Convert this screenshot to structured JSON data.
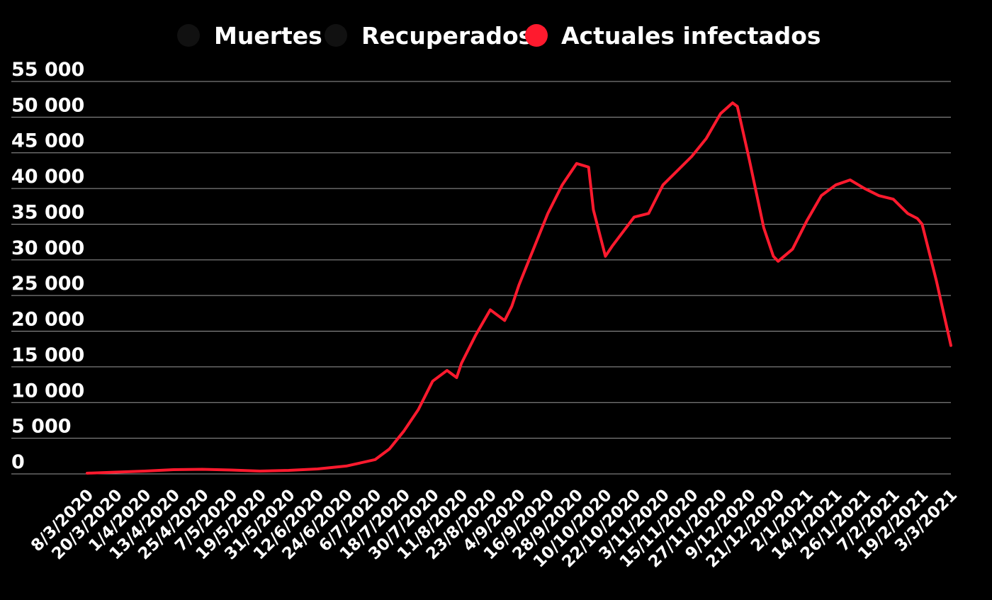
{
  "chart_data": {
    "type": "line",
    "title": "",
    "xlabel": "",
    "ylabel": "",
    "ylim": [
      0,
      55000
    ],
    "y_ticks": [
      0,
      5000,
      10000,
      15000,
      20000,
      25000,
      30000,
      35000,
      40000,
      45000,
      50000,
      55000
    ],
    "y_tick_labels": [
      "0",
      "5 000",
      "10 000",
      "15 000",
      "20 000",
      "25 000",
      "30 000",
      "35 000",
      "40 000",
      "45 000",
      "50 000",
      "55 000"
    ],
    "x_tick_labels": [
      "8/3/2020",
      "20/3/2020",
      "1/4/2020",
      "13/4/2020",
      "25/4/2020",
      "7/5/2020",
      "19/5/2020",
      "31/5/2020",
      "12/6/2020",
      "24/6/2020",
      "6/7/2020",
      "18/7/2020",
      "30/7/2020",
      "11/8/2020",
      "23/8/2020",
      "4/9/2020",
      "16/9/2020",
      "28/9/2020",
      "10/10/2020",
      "22/10/2020",
      "3/11/2020",
      "15/11/2020",
      "27/11/2020",
      "9/12/2020",
      "21/12/2020",
      "2/1/2021",
      "14/1/2021",
      "26/1/2021",
      "7/2/2021",
      "19/2/2021",
      "3/3/2021"
    ],
    "grid": true,
    "legend_position": "top-center",
    "series": [
      {
        "name": "Muertes",
        "color": "#111111",
        "visible": false,
        "values": []
      },
      {
        "name": "Recuperados",
        "color": "#111111",
        "visible": false,
        "values": []
      },
      {
        "name": "Actuales infectados",
        "color": "#ff1a2e",
        "visible": true,
        "x": [
          "8/3/2020",
          "20/3/2020",
          "1/4/2020",
          "13/4/2020",
          "25/4/2020",
          "7/5/2020",
          "19/5/2020",
          "31/5/2020",
          "12/6/2020",
          "24/6/2020",
          "6/7/2020",
          "12/7/2020",
          "18/7/2020",
          "24/7/2020",
          "30/7/2020",
          "5/8/2020",
          "9/8/2020",
          "11/8/2020",
          "17/8/2020",
          "23/8/2020",
          "29/8/2020",
          "1/9/2020",
          "4/9/2020",
          "10/9/2020",
          "16/9/2020",
          "22/9/2020",
          "28/9/2020",
          "3/10/2020",
          "5/10/2020",
          "10/10/2020",
          "13/10/2020",
          "22/10/2020",
          "28/10/2020",
          "3/11/2020",
          "9/11/2020",
          "15/11/2020",
          "21/11/2020",
          "27/11/2020",
          "2/12/2020",
          "4/12/2020",
          "9/12/2020",
          "15/12/2020",
          "19/12/2020",
          "21/12/2020",
          "27/12/2020",
          "2/1/2021",
          "8/1/2021",
          "14/1/2021",
          "20/1/2021",
          "26/1/2021",
          "1/2/2021",
          "7/2/2021",
          "13/2/2021",
          "17/2/2021",
          "19/2/2021",
          "25/2/2021",
          "3/3/2021"
        ],
        "values": [
          100,
          250,
          400,
          600,
          650,
          550,
          400,
          500,
          700,
          1100,
          2000,
          3500,
          6000,
          9000,
          13000,
          14500,
          13500,
          15500,
          19500,
          23000,
          21500,
          23500,
          26500,
          31500,
          36500,
          40500,
          43500,
          43000,
          37000,
          30500,
          32000,
          36000,
          36500,
          40500,
          42500,
          44500,
          47000,
          50500,
          52000,
          51500,
          44000,
          34500,
          30500,
          29800,
          31500,
          35500,
          39000,
          40500,
          41200,
          40000,
          39000,
          38500,
          36500,
          35800,
          35000,
          27000,
          18000
        ]
      }
    ]
  }
}
